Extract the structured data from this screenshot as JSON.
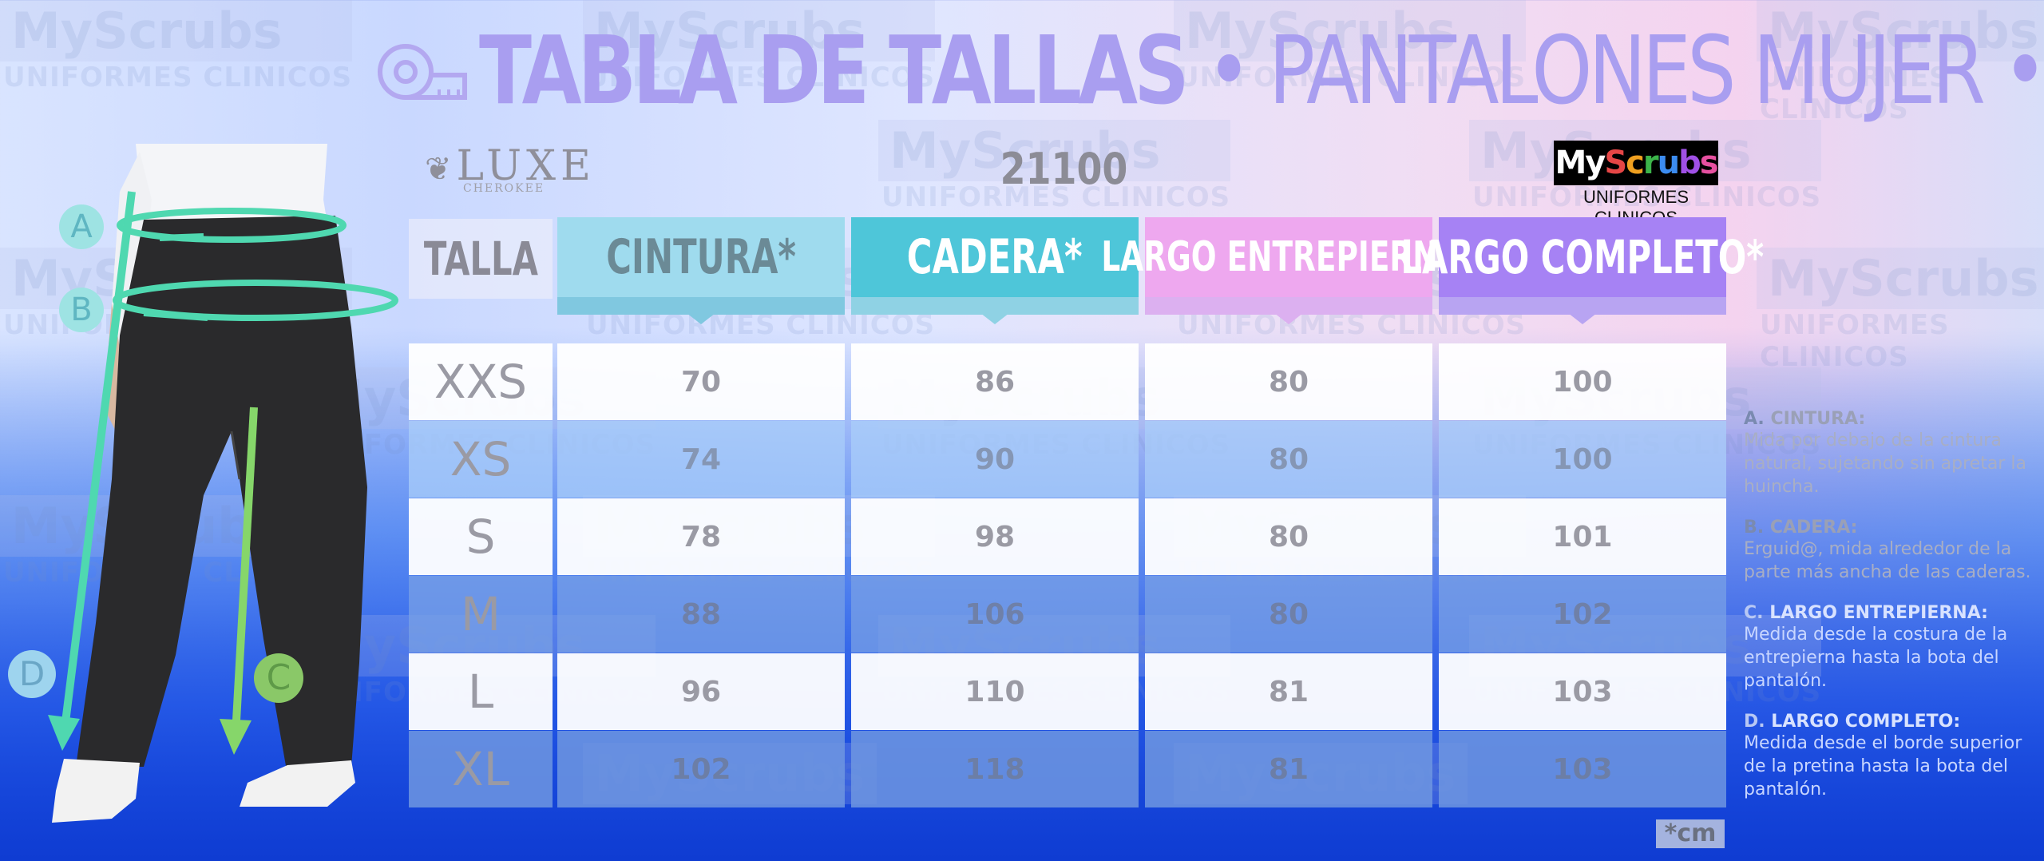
{
  "title": {
    "bold": "TABLA DE TALLAS",
    "sep1": " • ",
    "text": "PANTALONES MUJER",
    "sep2": " •"
  },
  "brand": {
    "luxe": "LUXE",
    "luxe_sub": "CHEROKEE",
    "model": "21100",
    "logo_my": "My",
    "logo_scrubs": [
      "S",
      "c",
      "r",
      "u",
      "b",
      "s"
    ],
    "logo_tagline": "UNIFORMES CLINICOS"
  },
  "watermark": {
    "big": "MyScrubs",
    "small": "UNIFORMES CLINICOS"
  },
  "table": {
    "headers": [
      "TALLA",
      "CINTURA*",
      "CADERA*",
      "LARGO ENTREPIERNA*",
      "LARGO COMPLETO*"
    ],
    "rows": [
      {
        "size": "XXS",
        "cintura": "70",
        "cadera": "86",
        "entrepierna": "80",
        "completo": "100"
      },
      {
        "size": "XS",
        "cintura": "74",
        "cadera": "90",
        "entrepierna": "80",
        "completo": "100"
      },
      {
        "size": "S",
        "cintura": "78",
        "cadera": "98",
        "entrepierna": "80",
        "completo": "101"
      },
      {
        "size": "M",
        "cintura": "88",
        "cadera": "106",
        "entrepierna": "80",
        "completo": "102"
      },
      {
        "size": "L",
        "cintura": "96",
        "cadera": "110",
        "entrepierna": "81",
        "completo": "103"
      },
      {
        "size": "XL",
        "cintura": "102",
        "cadera": "118",
        "entrepierna": "81",
        "completo": "103"
      }
    ],
    "unit": "*cm"
  },
  "figure": {
    "labels": [
      "A",
      "B",
      "C",
      "D"
    ]
  },
  "legend": [
    {
      "key": "A.",
      "name": "CINTURA:",
      "desc": "Mida por debajo de la cintura natural, sujetando sin apretar la huincha."
    },
    {
      "key": "B.",
      "name": "CADERA:",
      "desc": "Erguid@, mida alrededor de la parte más ancha de las caderas."
    },
    {
      "key": "C.",
      "name": "LARGO ENTREPIERNA:",
      "desc": "Medida desde la costura de la entrepierna hasta la bota del pantalón."
    },
    {
      "key": "D.",
      "name": "LARGO COMPLETO:",
      "desc": "Medida desde el borde superior de la pretina hasta la bota del pantalón."
    }
  ],
  "colors": {
    "cintura": "#9fdbee",
    "cadera": "#4ec6d9",
    "entrepierna": "#eea8ef",
    "completo": "#a682f4",
    "accent_arrow": "#45d6a8"
  }
}
